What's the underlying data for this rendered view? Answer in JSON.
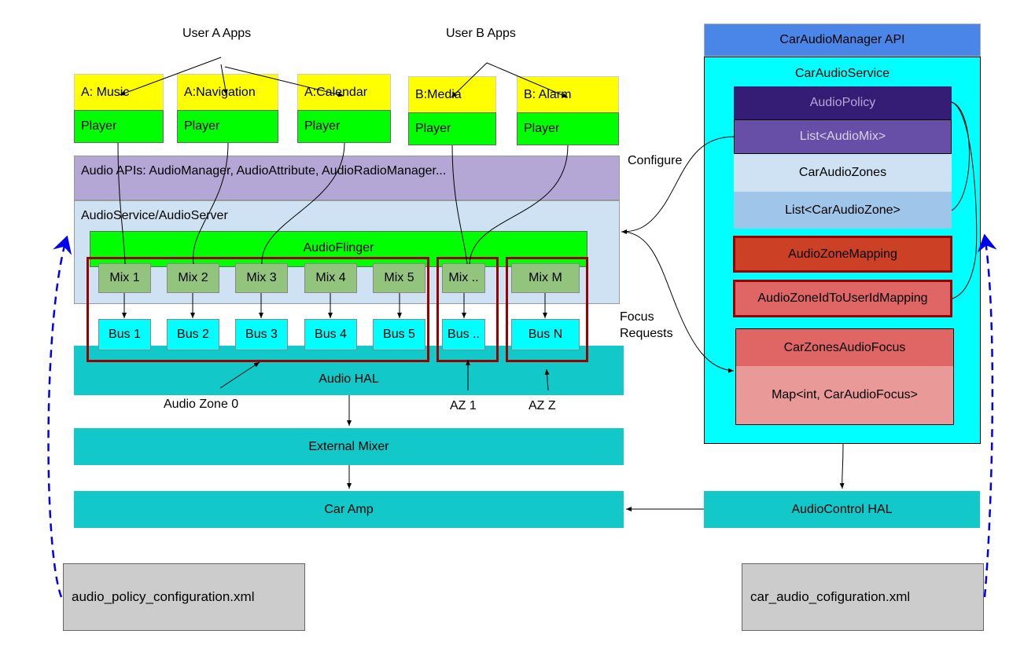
{
  "user_a": "User A Apps",
  "user_b": "User B Apps",
  "apps": [
    {
      "name": "A: Music",
      "player": "Player"
    },
    {
      "name": "A:Navigation",
      "player": "Player"
    },
    {
      "name": "A:Calendar",
      "player": "Player"
    },
    {
      "name": "B:Media",
      "player": "Player"
    },
    {
      "name": "B: Alarm",
      "player": "Player"
    }
  ],
  "audio_apis": "Audio APIs: AudioManager, AudioAttribute, AudioRadioManager...",
  "audio_service": "AudioService/AudioServer",
  "audio_flinger": "AudioFlinger",
  "mixes": [
    "Mix 1",
    "Mix 2",
    "Mix 3",
    "Mix 4",
    "Mix 5",
    "Mix ..",
    "Mix M"
  ],
  "buses": [
    "Bus 1",
    "Bus 2",
    "Bus 3",
    "Bus 4",
    "Bus 5",
    "Bus ..",
    "Bus N"
  ],
  "audio_hal": "Audio HAL",
  "zones": [
    "Audio Zone 0",
    "AZ 1",
    "AZ Z"
  ],
  "external_mixer": "External Mixer",
  "car_amp": "Car Amp",
  "audio_policy_xml": "audio_policy_configuration.xml",
  "car_audio_xml": "car_audio_cofiguration.xml",
  "configure": "Configure",
  "focus_requests": [
    "Focus",
    "Requests"
  ],
  "car_audio_manager_api": "CarAudioManager API",
  "car_audio_service": "CarAudioService",
  "audio_policy": "AudioPolicy",
  "list_audio_mix": "List<AudioMix>",
  "car_audio_zones": "CarAudioZones",
  "list_car_audio_zone": "List<CarAudioZone>",
  "audio_zone_mapping": "AudioZoneMapping",
  "audio_zone_id_to_user": "AudioZoneIdToUserIdMapping",
  "car_zones_audio_focus": "CarZonesAudioFocus",
  "map_focus": "Map<int, CarAudioFocus>",
  "audio_control_hal": "AudioControl HAL"
}
